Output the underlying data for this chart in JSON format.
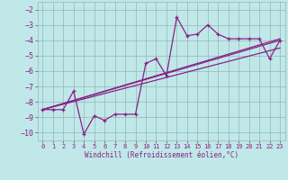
{
  "xlabel": "Windchill (Refroidissement éolien,°C)",
  "bg_color": "#c0e8e8",
  "grid_color": "#90b8b8",
  "line_color": "#882288",
  "xlim": [
    -0.5,
    23.5
  ],
  "ylim": [
    -10.5,
    -1.5
  ],
  "yticks": [
    -10,
    -9,
    -8,
    -7,
    -6,
    -5,
    -4,
    -3,
    -2
  ],
  "xticks": [
    0,
    1,
    2,
    3,
    4,
    5,
    6,
    7,
    8,
    9,
    10,
    11,
    12,
    13,
    14,
    15,
    16,
    17,
    18,
    19,
    20,
    21,
    22,
    23
  ],
  "series1_x": [
    0,
    1,
    2,
    3,
    4,
    5,
    6,
    7,
    8,
    9,
    10,
    11,
    12,
    13,
    14,
    15,
    16,
    17,
    18,
    19,
    20,
    21,
    22,
    23
  ],
  "series1_y": [
    -8.5,
    -8.5,
    -8.5,
    -7.3,
    -10.1,
    -8.9,
    -9.2,
    -8.8,
    -8.8,
    -8.8,
    -5.5,
    -5.2,
    -6.3,
    -2.5,
    -3.7,
    -3.6,
    -3.0,
    -3.6,
    -3.9,
    -3.9,
    -3.9,
    -3.9,
    -5.2,
    -4.0
  ],
  "line2_x": [
    0,
    23
  ],
  "line2_y": [
    -8.5,
    -4.0
  ],
  "line3_x": [
    0,
    23
  ],
  "line3_y": [
    -8.5,
    -4.5
  ],
  "line4_x": [
    0,
    23
  ],
  "line4_y": [
    -8.5,
    -3.9
  ]
}
